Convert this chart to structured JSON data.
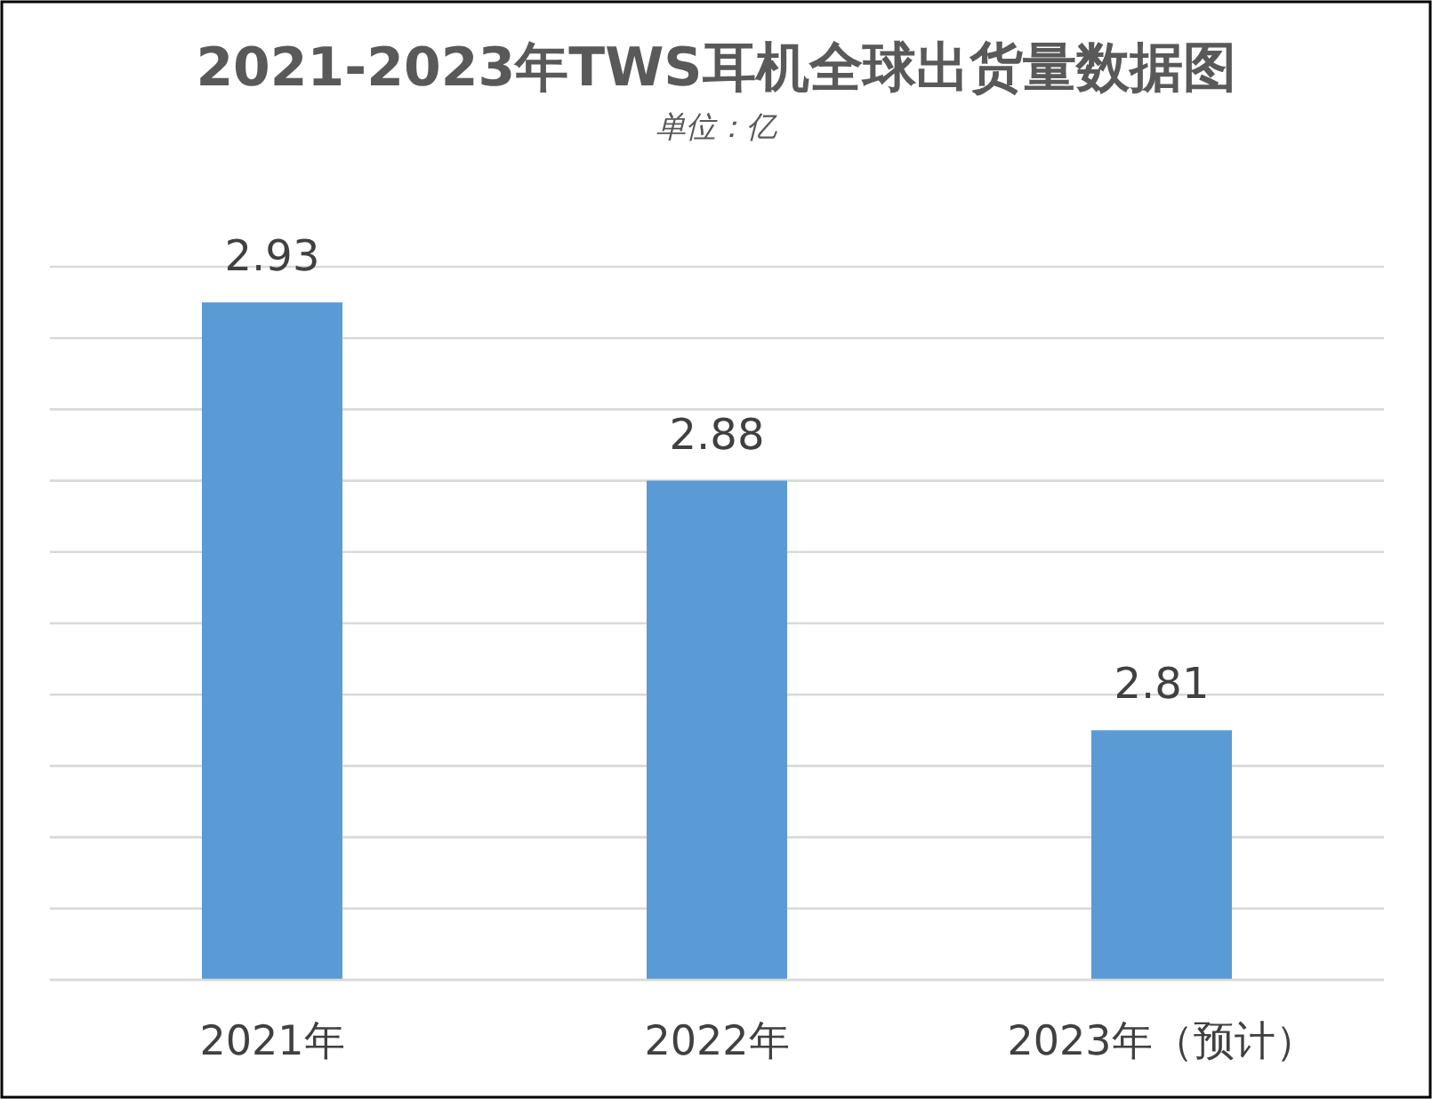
{
  "chart_data": {
    "type": "bar",
    "title": "2021-2023年TWS耳机全球出货量数据图",
    "subtitle": "单位：亿",
    "categories": [
      "2021年",
      "2022年",
      "2023年（预计）"
    ],
    "values": [
      2.93,
      2.88,
      2.81
    ],
    "color": "#5b9bd5",
    "ylim": [
      2.74,
      2.94
    ],
    "yticks": [
      {
        "value": 2.74,
        "label": null
      },
      {
        "value": 2.76,
        "label": null
      },
      {
        "value": 2.78,
        "label": null
      },
      {
        "value": 2.8,
        "label": null
      },
      {
        "value": 2.82,
        "label": null
      },
      {
        "value": 2.84,
        "label": null
      },
      {
        "value": 2.86,
        "label": null
      },
      {
        "value": 2.88,
        "label": null
      },
      {
        "value": 2.9,
        "label": null
      },
      {
        "value": 2.92,
        "label": null
      },
      {
        "value": 2.94,
        "label": null
      }
    ],
    "grid": "y",
    "data_labels": true,
    "tick_labels": "x"
  }
}
